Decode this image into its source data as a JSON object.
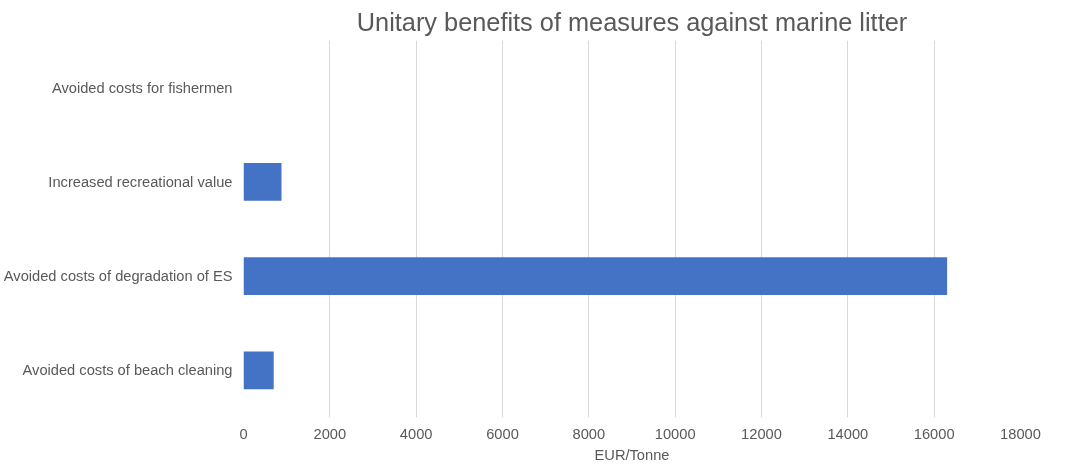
{
  "chart_data": {
    "type": "bar",
    "orientation": "horizontal",
    "title": "Unitary benefits of measures against marine litter",
    "xlabel": "EUR/Tonne",
    "categories": [
      "Avoided costs for fishermen",
      "Increased recreational value",
      "Avoided costs of degradation of ES",
      "Avoided costs of beach cleaning"
    ],
    "values": [
      0,
      880,
      16300,
      700
    ],
    "color": "#4472c4",
    "xlim": [
      0,
      18000
    ],
    "xticks": [
      0,
      2000,
      4000,
      6000,
      8000,
      10000,
      12000,
      14000,
      16000,
      18000
    ],
    "grid": "x"
  }
}
